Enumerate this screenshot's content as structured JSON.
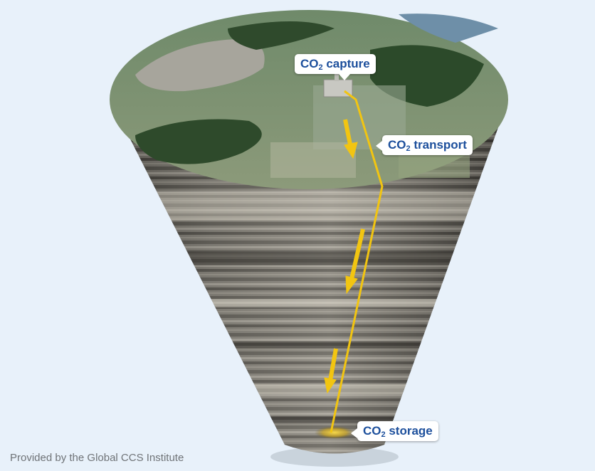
{
  "labels": {
    "capture": {
      "main": "CO",
      "sub": "2",
      "rest": " capture"
    },
    "transport": {
      "main": "CO",
      "sub": "2",
      "rest": " transport"
    },
    "storage": {
      "main": "CO",
      "sub": "2",
      "rest": " storage"
    }
  },
  "credit": "Provided by the Global CCS Institute",
  "colors": {
    "background": "#e8f1fa",
    "label_text": "#1c4f9c",
    "pipeline": "#f2c511",
    "arrow": "#f2c511"
  }
}
